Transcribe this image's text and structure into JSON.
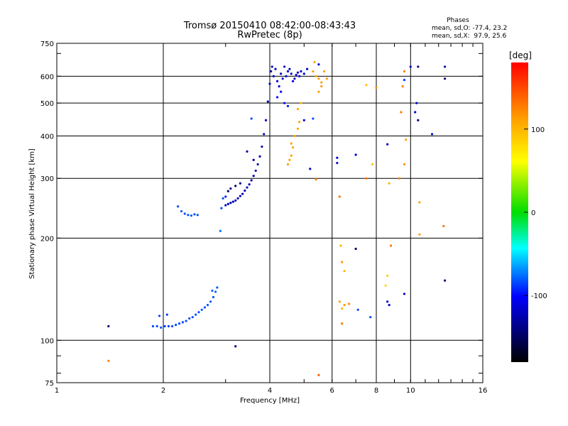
{
  "chart_data": {
    "type": "scatter",
    "title": "Tromsø 20150410 08:42:00-08:43:43",
    "subtitle": "RwPretec (8p)",
    "xlabel": "Frequency [MHz]",
    "ylabel": "Stationary phase Virtual Height [km]",
    "x_scale": "log",
    "y_scale": "log",
    "xlim": [
      1,
      16
    ],
    "ylim": [
      75,
      750
    ],
    "x_ticks": [
      1,
      2,
      4,
      6,
      8,
      10,
      16
    ],
    "y_ticks": [
      75,
      100,
      200,
      300,
      400,
      500,
      600,
      750
    ],
    "grid": true,
    "phases_legend": {
      "title": "Phases",
      "line1": "mean, sd,O: -77.4, 23.2",
      "line2": "mean, sd,X:  97.9, 25.6"
    },
    "colorbar": {
      "label": "[deg]",
      "min": -180,
      "max": 180,
      "ticks": [
        100,
        0,
        -100
      ]
    },
    "series": [
      {
        "points": [
          [
            1.87,
            110,
            -85
          ],
          [
            1.92,
            110,
            -85
          ],
          [
            1.97,
            109,
            -82
          ],
          [
            2.02,
            110,
            -85
          ],
          [
            2.07,
            110,
            -86
          ],
          [
            2.12,
            110,
            -84
          ],
          [
            2.17,
            111,
            -85
          ],
          [
            2.22,
            112,
            -84
          ],
          [
            2.27,
            113,
            -85
          ],
          [
            2.32,
            114,
            -84
          ],
          [
            2.37,
            116,
            -83
          ],
          [
            2.42,
            117,
            -84
          ],
          [
            2.47,
            119,
            -84
          ],
          [
            2.52,
            121,
            -83
          ],
          [
            2.57,
            123,
            -82
          ],
          [
            2.62,
            125,
            -83
          ],
          [
            2.67,
            127,
            -82
          ],
          [
            2.72,
            130,
            -81
          ],
          [
            2.77,
            134,
            -82
          ],
          [
            2.81,
            139,
            -80
          ],
          [
            2.84,
            143,
            -80
          ],
          [
            1.95,
            118,
            -86
          ],
          [
            2.05,
            119,
            -88
          ],
          [
            2.75,
            140,
            -80
          ],
          [
            2.9,
            210,
            -75
          ],
          [
            2.2,
            248,
            -82
          ],
          [
            2.25,
            240,
            -82
          ],
          [
            2.3,
            236,
            -82
          ],
          [
            2.35,
            234,
            -84
          ],
          [
            2.4,
            233,
            -82
          ],
          [
            2.45,
            235,
            -82
          ],
          [
            2.5,
            234,
            -84
          ],
          [
            2.92,
            245,
            -85
          ],
          [
            2.95,
            262,
            -84
          ],
          [
            3.0,
            250,
            -120
          ],
          [
            3.05,
            252,
            -125
          ],
          [
            3.1,
            254,
            -128
          ],
          [
            3.15,
            256,
            -125
          ],
          [
            3.2,
            258,
            -122
          ],
          [
            3.25,
            262,
            -124
          ],
          [
            3.3,
            266,
            -125
          ],
          [
            3.35,
            270,
            -126
          ],
          [
            3.4,
            276,
            -124
          ],
          [
            3.45,
            282,
            -125
          ],
          [
            3.5,
            288,
            -122
          ],
          [
            3.55,
            296,
            -124
          ],
          [
            3.6,
            305,
            -125
          ],
          [
            3.65,
            316,
            -123
          ],
          [
            3.7,
            330,
            -125
          ],
          [
            3.75,
            348,
            -124
          ],
          [
            3.8,
            372,
            -126
          ],
          [
            3.85,
            405,
            -125
          ],
          [
            3.9,
            445,
            -124
          ],
          [
            3.95,
            505,
            -125
          ],
          [
            4.0,
            570,
            -124
          ],
          [
            4.03,
            620,
            -125
          ],
          [
            4.06,
            640,
            -120
          ],
          [
            3.05,
            275,
            -150
          ],
          [
            3.1,
            280,
            -140
          ],
          [
            3.2,
            285,
            -145
          ],
          [
            3.0,
            265,
            -95
          ],
          [
            3.3,
            290,
            -140
          ],
          [
            3.6,
            340,
            -128
          ],
          [
            3.45,
            360,
            -130
          ],
          [
            3.55,
            450,
            -85
          ],
          [
            4.1,
            600,
            -120
          ],
          [
            4.15,
            630,
            -118
          ],
          [
            4.2,
            580,
            -115
          ],
          [
            4.25,
            560,
            -112
          ],
          [
            4.3,
            610,
            -118
          ],
          [
            4.35,
            590,
            -115
          ],
          [
            4.4,
            640,
            -120
          ],
          [
            4.45,
            600,
            -118
          ],
          [
            4.5,
            620,
            -115
          ],
          [
            4.55,
            630,
            -118
          ],
          [
            4.6,
            610,
            -115
          ],
          [
            4.65,
            580,
            -112
          ],
          [
            4.2,
            520,
            -100
          ],
          [
            4.3,
            540,
            -105
          ],
          [
            4.4,
            500,
            -100
          ],
          [
            4.7,
            590,
            -120
          ],
          [
            4.75,
            605,
            -118
          ],
          [
            4.8,
            615,
            -120
          ],
          [
            4.85,
            600,
            -118
          ],
          [
            4.9,
            620,
            -120
          ],
          [
            5.0,
            610,
            -118
          ],
          [
            5.1,
            630,
            -115
          ],
          [
            4.5,
            490,
            -95
          ],
          [
            4.6,
            380,
            110
          ],
          [
            4.65,
            370,
            112
          ],
          [
            4.7,
            400,
            108
          ],
          [
            4.5,
            330,
            115
          ],
          [
            4.55,
            340,
            112
          ],
          [
            4.6,
            350,
            110
          ],
          [
            4.8,
            420,
            108
          ],
          [
            4.85,
            440,
            110
          ],
          [
            4.8,
            480,
            105
          ],
          [
            4.9,
            500,
            100
          ],
          [
            5.4,
            600,
            108
          ],
          [
            5.5,
            590,
            112
          ],
          [
            5.6,
            560,
            115
          ],
          [
            5.7,
            620,
            110
          ],
          [
            5.5,
            540,
            110
          ],
          [
            5.6,
            575,
            112
          ],
          [
            5.3,
            620,
            112
          ],
          [
            5.35,
            660,
            110
          ],
          [
            5.8,
            590,
            115
          ],
          [
            5.5,
            650,
            -120
          ],
          [
            5.3,
            450,
            -85
          ],
          [
            5.0,
            445,
            -115
          ],
          [
            5.2,
            320,
            -120
          ],
          [
            5.4,
            298,
            125
          ],
          [
            5.5,
            79,
            140
          ],
          [
            6.2,
            345,
            -110
          ],
          [
            6.2,
            333,
            -112
          ],
          [
            6.3,
            265,
            130
          ],
          [
            6.35,
            190,
            100
          ],
          [
            6.4,
            170,
            115
          ],
          [
            6.5,
            160,
            100
          ],
          [
            6.3,
            130,
            110
          ],
          [
            6.5,
            127,
            115
          ],
          [
            6.7,
            128,
            120
          ],
          [
            6.4,
            124,
            100
          ],
          [
            6.4,
            112,
            130
          ],
          [
            7.0,
            186,
            -150
          ],
          [
            7.0,
            352,
            -115
          ],
          [
            7.1,
            123,
            -85
          ],
          [
            7.5,
            300,
            130
          ],
          [
            7.8,
            330,
            95
          ],
          [
            7.7,
            117,
            -85
          ],
          [
            7.5,
            565,
            95
          ],
          [
            8.0,
            555,
            120
          ],
          [
            8.6,
            378,
            -115
          ],
          [
            8.7,
            290,
            100
          ],
          [
            8.8,
            190,
            130
          ],
          [
            8.6,
            155,
            90
          ],
          [
            8.5,
            145,
            80
          ],
          [
            8.6,
            130,
            -110
          ],
          [
            8.7,
            127,
            -115
          ],
          [
            9.3,
            300,
            125
          ],
          [
            9.6,
            330,
            120
          ],
          [
            9.7,
            390,
            110
          ],
          [
            9.4,
            470,
            130
          ],
          [
            9.5,
            560,
            125
          ],
          [
            9.6,
            585,
            -90
          ],
          [
            9.6,
            620,
            125
          ],
          [
            9.6,
            137,
            -125
          ],
          [
            10.0,
            640,
            -125
          ],
          [
            10.3,
            470,
            -115
          ],
          [
            10.5,
            640,
            -140
          ],
          [
            10.4,
            500,
            -120
          ],
          [
            10.5,
            445,
            -140
          ],
          [
            10.6,
            255,
            110
          ],
          [
            10.6,
            205,
            110
          ],
          [
            11.5,
            405,
            -115
          ],
          [
            12.5,
            590,
            -140
          ],
          [
            12.5,
            640,
            -125
          ],
          [
            12.4,
            217,
            130
          ],
          [
            12.5,
            150,
            -140
          ],
          [
            1.4,
            110,
            -140
          ],
          [
            1.4,
            87,
            125
          ],
          [
            3.2,
            96,
            -140
          ]
        ]
      }
    ]
  }
}
